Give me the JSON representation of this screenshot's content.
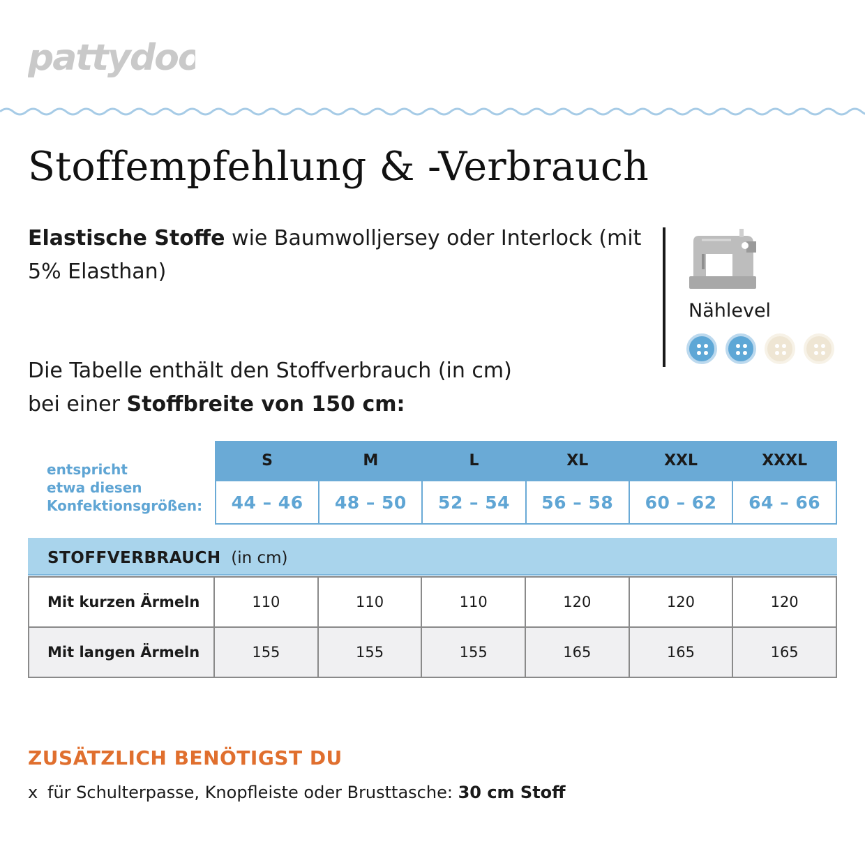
{
  "brand": {
    "logo_text": "pattydoo"
  },
  "title": "Stoffempfehlung & -Verbrauch",
  "intro": {
    "bold": "Elastische Stoffe",
    "text": " wie Baumwolljersey oder Interlock (mit 5% Elasthan)"
  },
  "table_intro": {
    "line1": "Die Tabelle enthält den Stoffverbrauch (in cm)",
    "line2_prefix": "bei einer ",
    "line2_bold": "Stoffbreite von 150 cm:"
  },
  "sewing_level": {
    "label": "Nählevel",
    "filled": 2,
    "total": 4,
    "filled_color": "#5ea7d6",
    "empty_color": "#efe6d4",
    "icon": "sewing-machine-icon"
  },
  "size_table": {
    "caption_lines": [
      "entspricht",
      "etwa diesen",
      "Konfektionsgrößen:"
    ],
    "sizes": [
      "S",
      "M",
      "L",
      "XL",
      "XXL",
      "XXXL"
    ],
    "ranges": [
      "44 – 46",
      "48 – 50",
      "52 – 54",
      "56 – 58",
      "60 – 62",
      "64 – 66"
    ]
  },
  "usage_table": {
    "header_bold": "STOFFVERBRAUCH",
    "header_unit": "(in cm)",
    "rows": [
      {
        "label": "Mit kurzen Ärmeln",
        "values": [
          "110",
          "110",
          "110",
          "120",
          "120",
          "120"
        ]
      },
      {
        "label": "Mit langen Ärmeln",
        "values": [
          "155",
          "155",
          "155",
          "165",
          "165",
          "165"
        ]
      }
    ]
  },
  "extra": {
    "title": "ZUSÄTZLICH BENÖTIGST DU",
    "items": [
      {
        "bullet": "x",
        "text": "für Schulterpasse, Knopfleiste oder Brusttasche: ",
        "bold": "30 cm Stoff"
      }
    ]
  },
  "colors": {
    "accent_blue": "#6aaad6",
    "light_blue": "#a9d4ec",
    "orange": "#e06f2e"
  }
}
